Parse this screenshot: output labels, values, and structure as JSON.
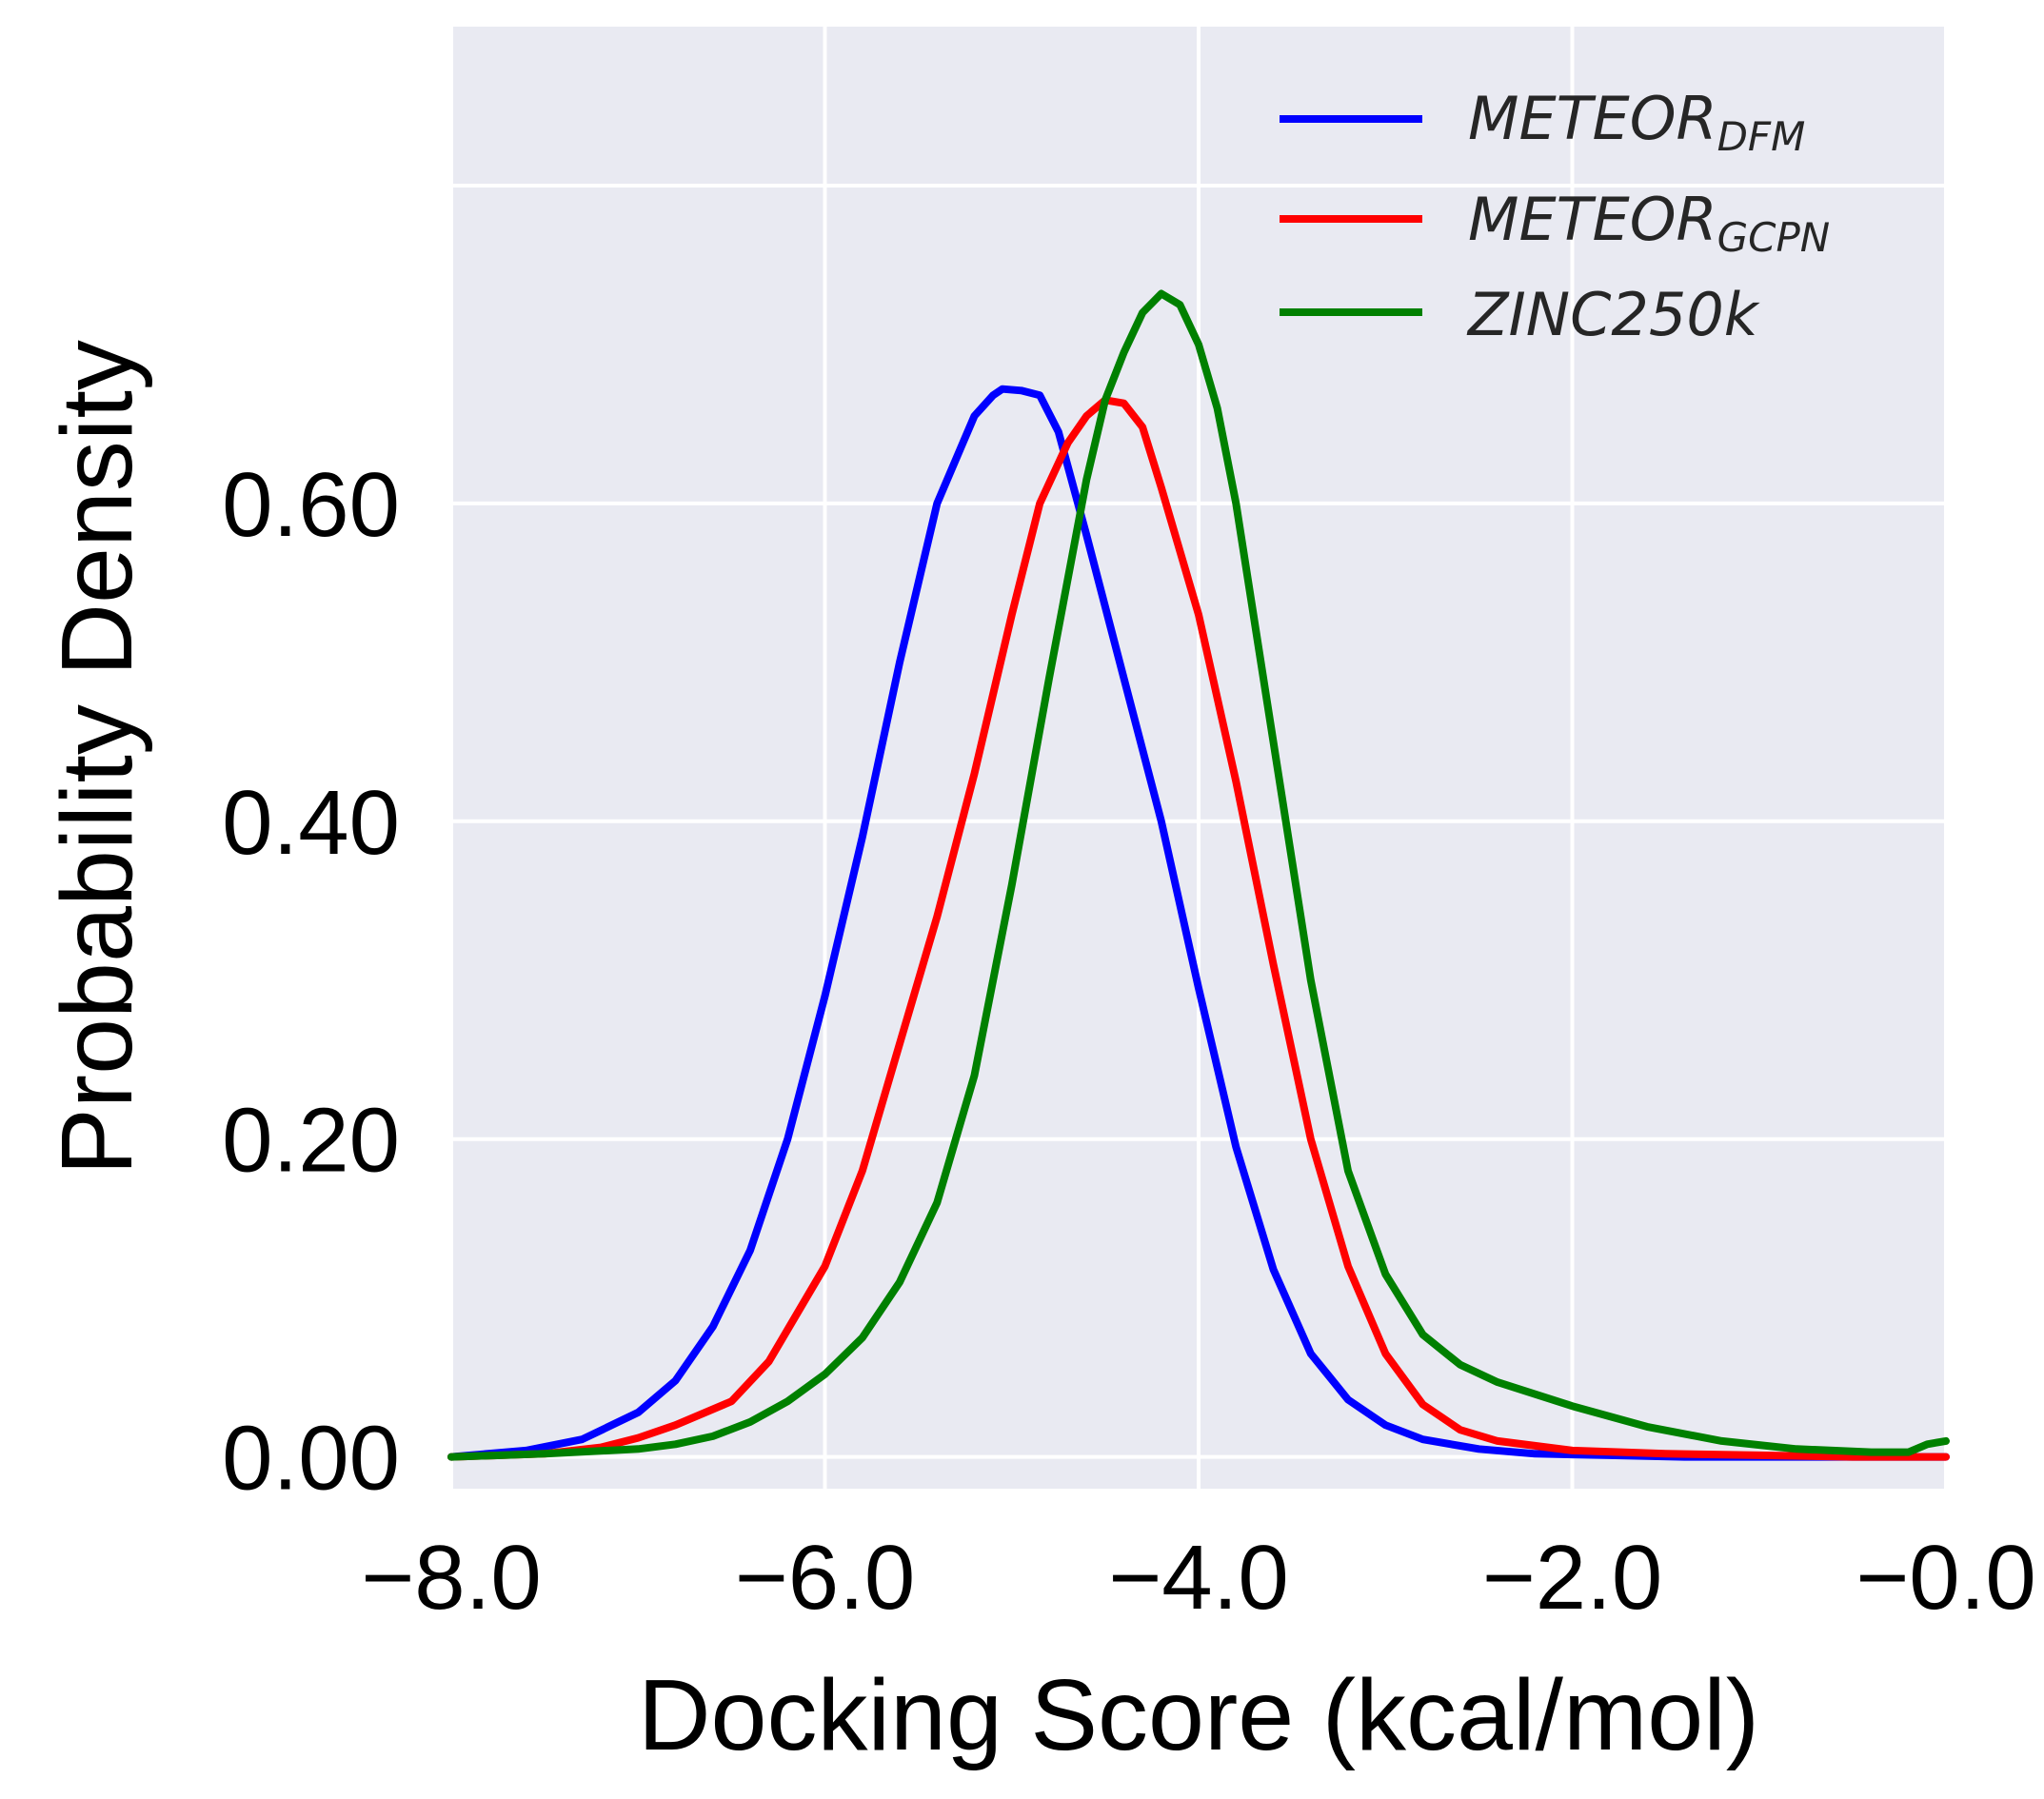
{
  "chart_data": {
    "type": "line",
    "title": "",
    "xlabel": "Docking Score (kcal/mol)",
    "ylabel": "Probability Density",
    "xlim": [
      -8.0,
      0.0
    ],
    "ylim": [
      -0.02,
      0.9
    ],
    "grid": true,
    "legend_position": "top-right",
    "xticks": [
      -8.0,
      -6.0,
      -4.0,
      -2.0,
      -0.0
    ],
    "xtick_labels": [
      "−8.0",
      "−6.0",
      "−4.0",
      "−2.0",
      "−0.0"
    ],
    "yticks": [
      0.0,
      0.2,
      0.4,
      0.6
    ],
    "ytick_labels": [
      "0.00",
      "0.20",
      "0.40",
      "0.60"
    ],
    "extra_gridlines_y": [
      0.8
    ],
    "series": [
      {
        "name": "METEOR",
        "name_sub": "DFM",
        "color": "#0000ff",
        "x": [
          -8.0,
          -7.6,
          -7.3,
          -7.0,
          -6.8,
          -6.6,
          -6.4,
          -6.2,
          -6.0,
          -5.8,
          -5.6,
          -5.4,
          -5.2,
          -5.1,
          -5.05,
          -4.95,
          -4.85,
          -4.75,
          -4.6,
          -4.4,
          -4.2,
          -4.0,
          -3.8,
          -3.6,
          -3.4,
          -3.2,
          -3.0,
          -2.8,
          -2.5,
          -2.2,
          -1.8,
          -1.4,
          -1.0,
          -0.5,
          0.0
        ],
        "y": [
          0.0,
          0.004,
          0.011,
          0.028,
          0.048,
          0.082,
          0.13,
          0.2,
          0.29,
          0.39,
          0.5,
          0.6,
          0.655,
          0.668,
          0.672,
          0.671,
          0.668,
          0.645,
          0.58,
          0.49,
          0.4,
          0.295,
          0.195,
          0.118,
          0.065,
          0.036,
          0.02,
          0.011,
          0.005,
          0.002,
          0.001,
          0.0,
          0.0,
          0.0,
          0.0
        ]
      },
      {
        "name": "METEOR",
        "name_sub": "GCPN",
        "color": "#ff0000",
        "x": [
          -8.0,
          -7.5,
          -7.2,
          -7.0,
          -6.8,
          -6.5,
          -6.3,
          -6.0,
          -5.8,
          -5.6,
          -5.4,
          -5.2,
          -5.0,
          -4.85,
          -4.7,
          -4.6,
          -4.5,
          -4.4,
          -4.3,
          -4.2,
          -4.0,
          -3.8,
          -3.6,
          -3.4,
          -3.2,
          -3.0,
          -2.8,
          -2.6,
          -2.4,
          -2.0,
          -1.5,
          -1.0,
          -0.5,
          0.0
        ],
        "y": [
          0.0,
          0.002,
          0.006,
          0.012,
          0.02,
          0.035,
          0.06,
          0.12,
          0.18,
          0.26,
          0.34,
          0.43,
          0.53,
          0.6,
          0.638,
          0.655,
          0.665,
          0.663,
          0.648,
          0.61,
          0.53,
          0.425,
          0.31,
          0.2,
          0.12,
          0.065,
          0.033,
          0.017,
          0.01,
          0.004,
          0.002,
          0.001,
          0.0,
          0.0
        ]
      },
      {
        "name": "ZINC250k",
        "name_sub": "",
        "color": "#008000",
        "x": [
          -8.0,
          -7.5,
          -7.0,
          -6.8,
          -6.6,
          -6.4,
          -6.2,
          -6.0,
          -5.8,
          -5.6,
          -5.4,
          -5.2,
          -5.0,
          -4.8,
          -4.6,
          -4.5,
          -4.4,
          -4.3,
          -4.2,
          -4.1,
          -4.0,
          -3.9,
          -3.8,
          -3.6,
          -3.4,
          -3.2,
          -3.0,
          -2.8,
          -2.6,
          -2.4,
          -2.0,
          -1.6,
          -1.2,
          -0.8,
          -0.4,
          -0.2,
          -0.1,
          0.0
        ],
        "y": [
          0.0,
          0.002,
          0.005,
          0.008,
          0.013,
          0.022,
          0.035,
          0.052,
          0.075,
          0.11,
          0.16,
          0.24,
          0.36,
          0.49,
          0.615,
          0.665,
          0.695,
          0.72,
          0.732,
          0.725,
          0.7,
          0.66,
          0.6,
          0.45,
          0.3,
          0.18,
          0.115,
          0.077,
          0.058,
          0.047,
          0.032,
          0.019,
          0.01,
          0.005,
          0.003,
          0.003,
          0.008,
          0.01
        ]
      }
    ]
  }
}
